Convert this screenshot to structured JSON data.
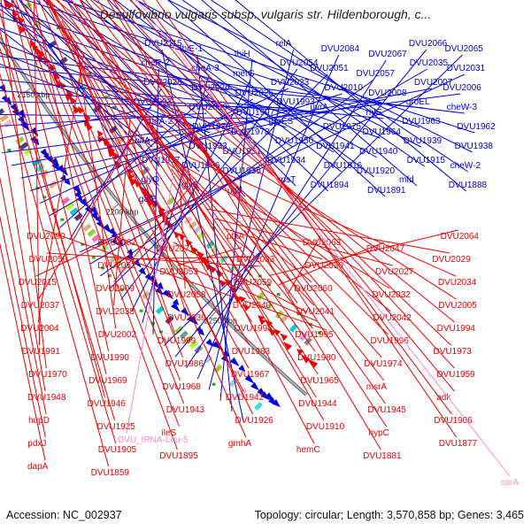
{
  "title": "Desulfovibrio vulgaris subsp. vulgaris str. Hildenborough, c...",
  "footer": {
    "accession": "Accession: NC_002937",
    "summary": "Topology: circular; Length: 3,570,858 bp; Genes: 3,465"
  },
  "colors": {
    "forward": "#0000dd",
    "reverse": "#ee0000",
    "rna": "#ff88cc",
    "backbone": "#777777"
  },
  "ticks": [
    {
      "label": "2250 kbp",
      "bp": 2250000
    },
    {
      "label": "2200 kbp",
      "bp": 2200000
    },
    {
      "label": "2150 kbp",
      "bp": 2150000
    },
    {
      "label": "2100 kbp",
      "bp": 2100000
    },
    {
      "label": "2050 kbp",
      "bp": 2050000
    },
    {
      "label": "2000 kbp",
      "bp": 2000000
    },
    {
      "label": "1950 kbp",
      "bp": 1950000
    }
  ],
  "forward_labels": [
    "DVU2115",
    "thiE-1",
    "thiH",
    "relA",
    "DVU2084",
    "DVU2067",
    "DVU2066",
    "DVU2065",
    "cheR-2",
    "cheA-3",
    "metG",
    "DVU2054",
    "DVU2051",
    "DVU2057",
    "DVU2035",
    "DVU2031",
    "DVU2028",
    "DVU2026",
    "DVU2025",
    "DVU2023",
    "DVU2010",
    "DVU2008",
    "DVU2007",
    "DVU2006",
    "DVU2003",
    "DVU2000",
    "DVU1997",
    "DVU1993",
    "uvrA",
    "rhlE",
    "groEL",
    "cheW-3",
    "cheA-2",
    "DVU1979",
    "DVU1978",
    "groES",
    "DVU1975",
    "DVU1964",
    "DVU1963",
    "DVU1962",
    "nifA-1",
    "DVU1933",
    "DVU1951",
    "DVU1950",
    "DVU1941",
    "DVU1940",
    "DVU1939",
    "DVU1938",
    "DVU1937",
    "DVU1936",
    "DVU1935",
    "DVU1934",
    "DVU1916",
    "DVU1920",
    "DVU1915",
    "cheW-2",
    "glyQ",
    "glyS",
    "ugd",
    "rpsT",
    "DVU1894",
    "DVU1891",
    "mfd",
    "DVU1888",
    "gatB"
  ],
  "reverse_labels": [
    "DVU2090",
    "DVU2082",
    "DVU2071",
    "pfkA",
    "DVU2063",
    "DVU2047",
    "DVU2064",
    "DVU2056",
    "DVU2052",
    "DVU2053",
    "DVU2033",
    "DVU2030",
    "DVU2027",
    "DVU2029",
    "DVU2015",
    "DVU2009",
    "DVU2058",
    "DVU2059",
    "DVU2060",
    "DVU2032",
    "DVU2034",
    "DVU2037",
    "DVU2038",
    "DVU2039",
    "DVU2040",
    "DVU2041",
    "DVU2042",
    "DVU2005",
    "DVU2004",
    "DVU2002",
    "DVU1999",
    "DVU1998",
    "DVU1995",
    "DVU1996",
    "DVU1994",
    "DVU1991",
    "DVU1990",
    "DVU1986",
    "DVU1983",
    "DVU1980",
    "DVU1974",
    "DVU1973",
    "DVU1970",
    "DVU1969",
    "DVU1968",
    "DVU1967",
    "DVU1965",
    "msrA",
    "DVU1959",
    "DVU1948",
    "DVU1946",
    "DVU1943",
    "DVU1942",
    "DVU1944",
    "DVU1945",
    "adk",
    "hupD",
    "DVU1925",
    "ileS",
    "DVU1926",
    "DVU1910",
    "hypC",
    "DVU1906",
    "pdxJ",
    "DVU1905",
    "DVU1895",
    "gmhA",
    "hemC",
    "DVU1881",
    "DVU1877",
    "dapA",
    "DVU1859"
  ],
  "rna_labels": [
    "DVU_tRNA-Leu-5",
    "ssrA"
  ]
}
